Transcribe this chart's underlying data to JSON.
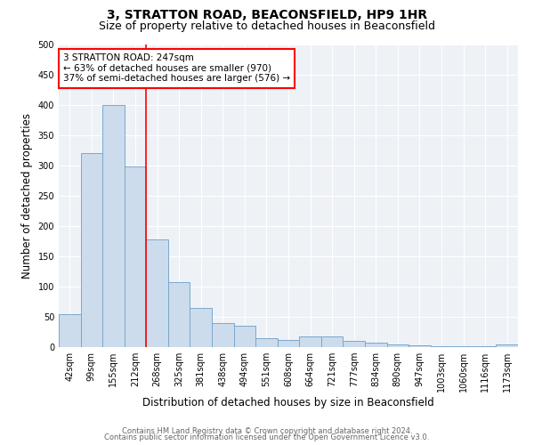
{
  "title": "3, STRATTON ROAD, BEACONSFIELD, HP9 1HR",
  "subtitle": "Size of property relative to detached houses in Beaconsfield",
  "xlabel": "Distribution of detached houses by size in Beaconsfield",
  "ylabel": "Number of detached properties",
  "bar_color": "#ccdcec",
  "bar_edge_color": "#7aa8cc",
  "categories": [
    "42sqm",
    "99sqm",
    "155sqm",
    "212sqm",
    "268sqm",
    "325sqm",
    "381sqm",
    "438sqm",
    "494sqm",
    "551sqm",
    "608sqm",
    "664sqm",
    "721sqm",
    "777sqm",
    "834sqm",
    "890sqm",
    "947sqm",
    "1003sqm",
    "1060sqm",
    "1116sqm",
    "1173sqm"
  ],
  "values": [
    55,
    320,
    400,
    298,
    178,
    108,
    65,
    40,
    35,
    14,
    12,
    17,
    17,
    10,
    7,
    5,
    3,
    2,
    1,
    1,
    5
  ],
  "ylim": [
    0,
    500
  ],
  "yticks": [
    0,
    50,
    100,
    150,
    200,
    250,
    300,
    350,
    400,
    450,
    500
  ],
  "property_line_color": "red",
  "annotation_text": "3 STRATTON ROAD: 247sqm\n← 63% of detached houses are smaller (970)\n37% of semi-detached houses are larger (576) →",
  "annotation_box_color": "white",
  "annotation_box_edge_color": "red",
  "footer_line1": "Contains HM Land Registry data © Crown copyright and database right 2024.",
  "footer_line2": "Contains public sector information licensed under the Open Government Licence v3.0.",
  "background_color": "#eef2f7",
  "grid_color": "white",
  "title_fontsize": 10,
  "subtitle_fontsize": 9,
  "axis_label_fontsize": 8.5,
  "tick_fontsize": 7,
  "footer_fontsize": 6,
  "annotation_fontsize": 7.5
}
